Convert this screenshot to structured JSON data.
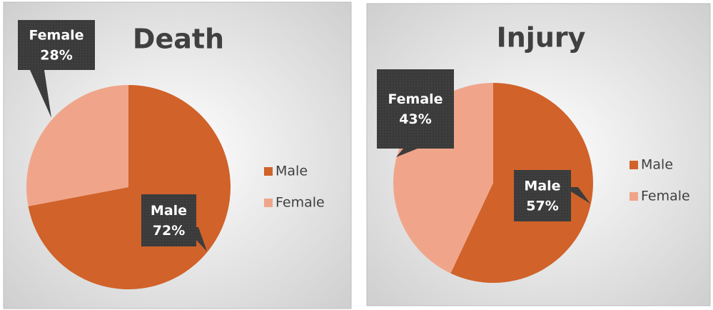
{
  "chart_data": [
    {
      "type": "pie",
      "title": "Death",
      "categories": [
        "Male",
        "Female"
      ],
      "values": [
        72,
        28
      ],
      "value_labels": [
        "72%",
        "28%"
      ],
      "colors": [
        "#d0622a",
        "#f0a58a"
      ],
      "legend": "right"
    },
    {
      "type": "pie",
      "title": "Injury",
      "categories": [
        "Male",
        "Female"
      ],
      "values": [
        57,
        43
      ],
      "value_labels": [
        "57%",
        "43%"
      ],
      "colors": [
        "#d0622a",
        "#f0a58a"
      ],
      "legend": "right"
    }
  ]
}
